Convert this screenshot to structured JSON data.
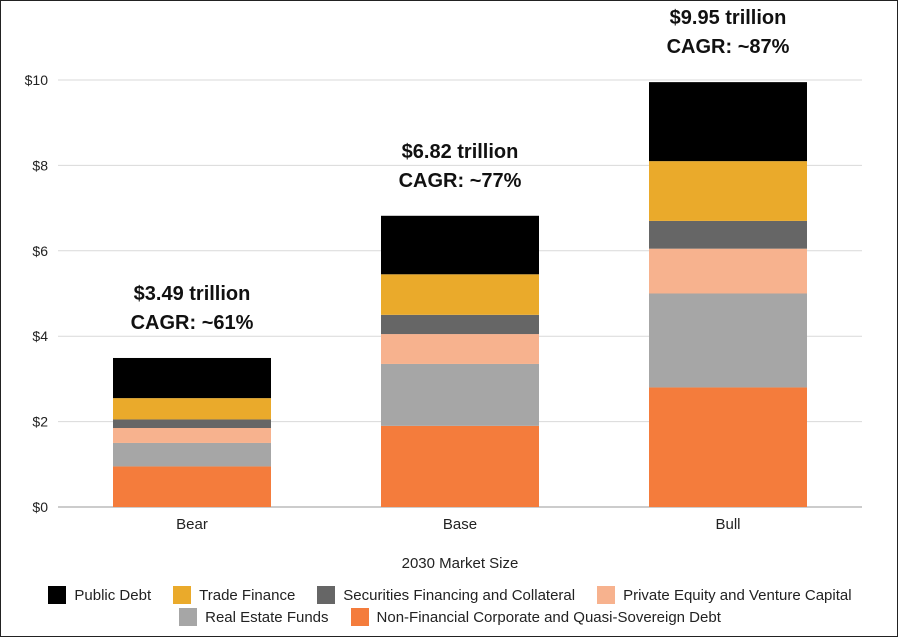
{
  "chart_data": {
    "type": "bar",
    "stacked": true,
    "categories": [
      "Bear",
      "Base",
      "Bull"
    ],
    "xlabel": "2030 Market Size",
    "ylabel": "",
    "ylim": [
      0,
      10
    ],
    "yticks": [
      "$0",
      "$2",
      "$4",
      "$6",
      "$8",
      "$10"
    ],
    "grid": true,
    "legend_position": "bottom",
    "series": [
      {
        "name": "Non-Financial Corporate and Quasi-Sovereign Debt",
        "color": "#F47C3C",
        "values": [
          0.95,
          1.9,
          2.8
        ]
      },
      {
        "name": "Real Estate Funds",
        "color": "#A6A6A6",
        "values": [
          0.55,
          1.45,
          2.2
        ]
      },
      {
        "name": "Private Equity and Venture Capital",
        "color": "#F7B28E",
        "values": [
          0.35,
          0.7,
          1.05
        ]
      },
      {
        "name": "Securities Financing and Collateral",
        "color": "#666666",
        "values": [
          0.2,
          0.45,
          0.65
        ]
      },
      {
        "name": "Trade Finance",
        "color": "#EAAA2B",
        "values": [
          0.5,
          0.95,
          1.4
        ]
      },
      {
        "name": "Public Debt",
        "color": "#000000",
        "values": [
          0.94,
          1.37,
          1.85
        ]
      }
    ],
    "annotations": [
      {
        "category": "Bear",
        "line1": "$3.49 trillion",
        "line2": "CAGR: ~61%"
      },
      {
        "category": "Base",
        "line1": "$6.82  trillion",
        "line2": "CAGR: ~77%"
      },
      {
        "category": "Bull",
        "line1": "$9.95  trillion",
        "line2": "CAGR: ~87%"
      }
    ]
  },
  "legend": {
    "row1": [
      "Public Debt",
      "Trade Finance",
      "Securities Financing and Collateral",
      "Private Equity and Venture Capital"
    ],
    "row2": [
      "Real Estate Funds",
      "Non-Financial Corporate and Quasi-Sovereign Debt"
    ]
  }
}
